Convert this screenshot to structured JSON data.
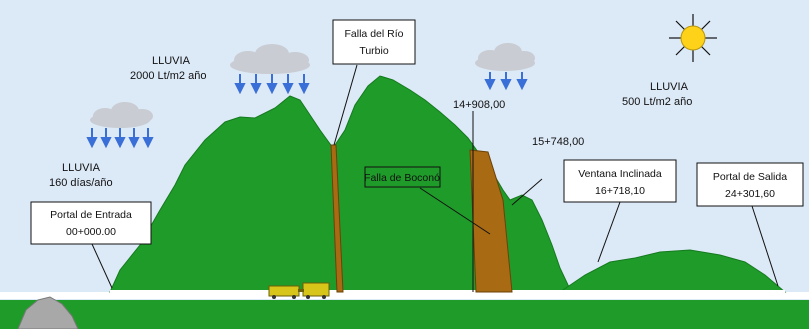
{
  "colors": {
    "sky": "#dce9f7",
    "mountain": "#1f9b2a",
    "mountain_edge": "#157a1e",
    "ground": "#1f9b2a",
    "fault": "#a86a12",
    "fault_edge": "#6b420a",
    "cloud": "#c9ccd2",
    "rain": "#3a6fd8",
    "sun": "#ffd21a",
    "train": "#d7c51a",
    "rock": "#a8a8a8"
  },
  "icons": {
    "sun": "sun-icon",
    "cloud": "cloud-icon",
    "rain": "rain-arrows-icon",
    "train": "train-icon",
    "rock": "rock-icon"
  },
  "rain": {
    "left_low": {
      "line1": "LLUVIA",
      "line2": "160 días/año"
    },
    "left_high": {
      "line1": "LLUVIA",
      "line2": "2000 Lt/m2 año"
    },
    "right": {
      "line1": "LLUVIA",
      "line2": "500 Lt/m2   año"
    }
  },
  "labels": {
    "falla_rio_turbio": {
      "line1": "Falla del Río",
      "line2": "Turbio"
    },
    "falla_bocono": "Falla de Boconó",
    "portal_entrada": {
      "line1": "Portal de Entrada",
      "line2": "00+000.00"
    },
    "ventana_inclinada": {
      "line1": "Ventana Inclinada",
      "line2": "16+718,10"
    },
    "portal_salida": {
      "line1": "Portal de Salida",
      "line2": "24+301,60"
    },
    "km_14908": "14+908,00",
    "km_15748": "15+748,00"
  }
}
